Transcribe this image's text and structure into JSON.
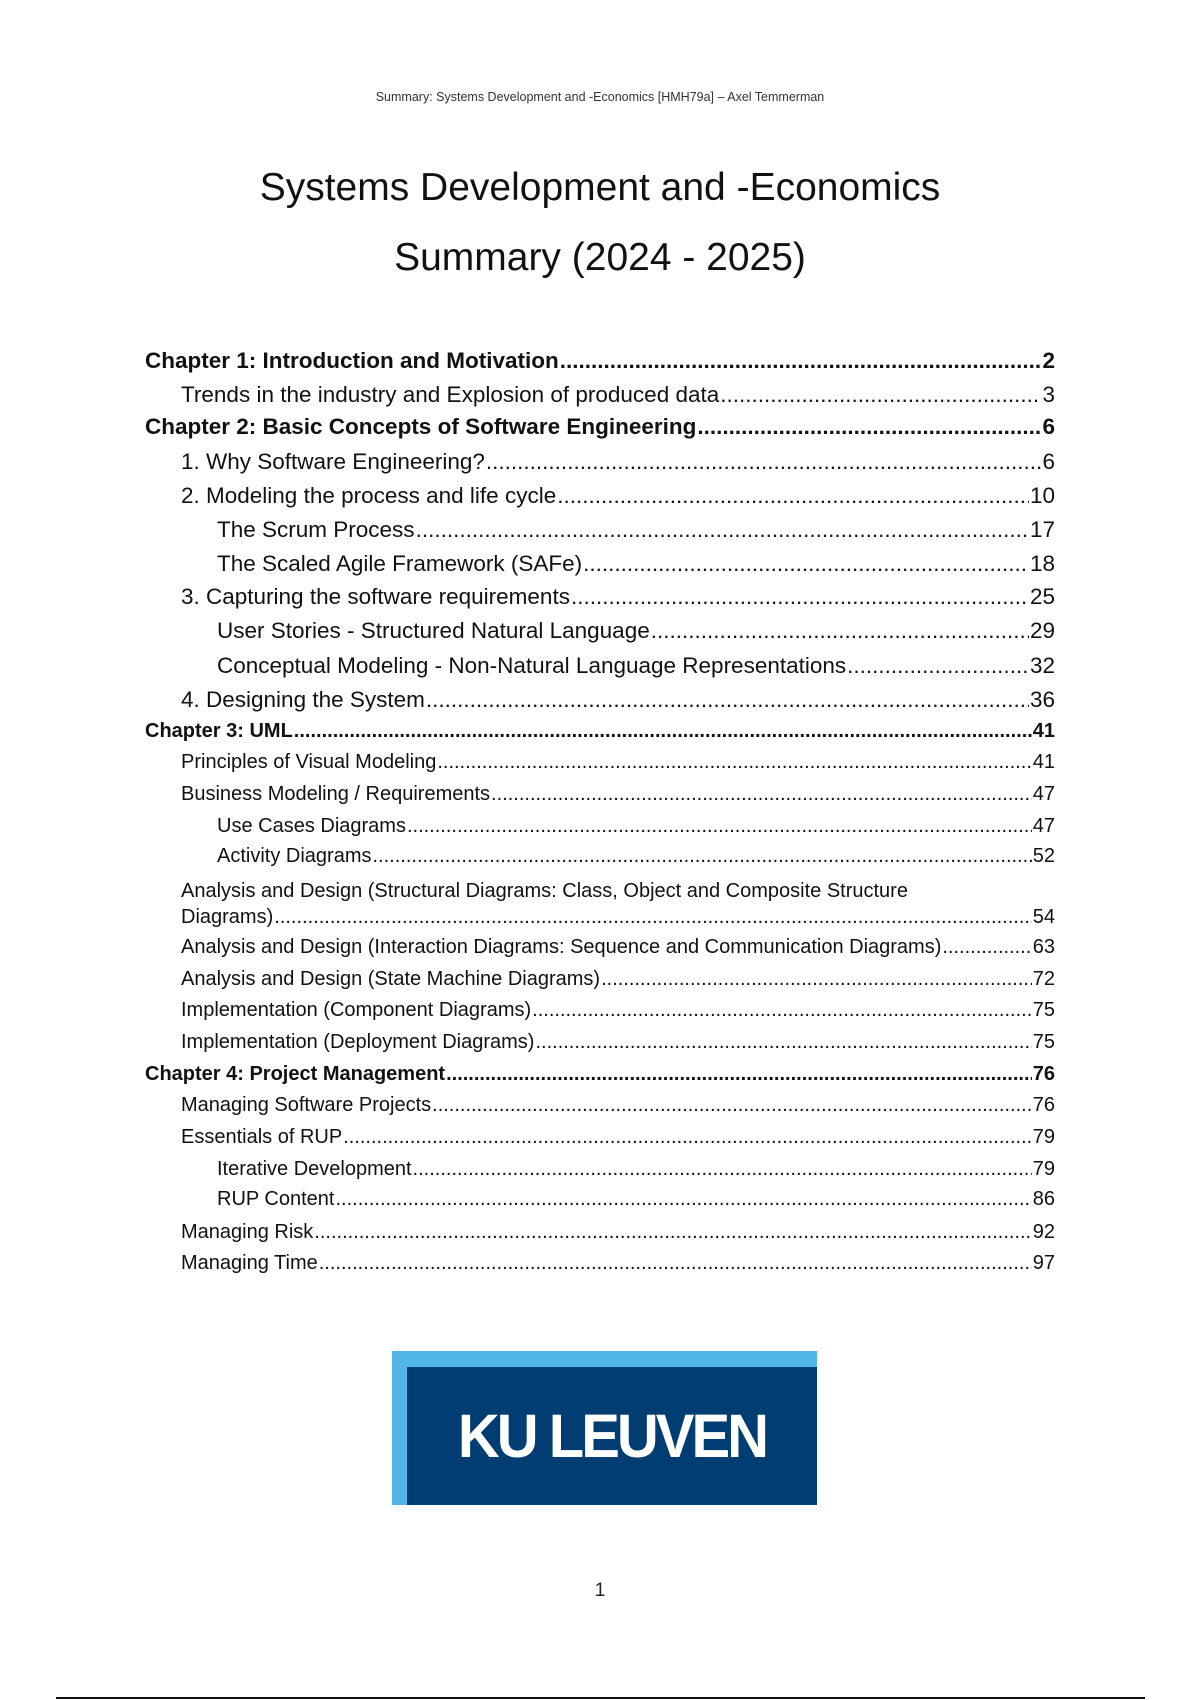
{
  "header": "Summary: Systems Development and -Economics [HMH79a] – Axel Temmerman",
  "title_line1": "Systems Development and -Economics",
  "title_line2": "Summary (2024 - 2025)",
  "toc": [
    {
      "text": "Chapter 1: Introduction and Motivation",
      "page": "2",
      "level": 0
    },
    {
      "text": "Trends in the industry and Explosion of produced data",
      "page": "3",
      "level": 1
    },
    {
      "text": "Chapter 2: Basic Concepts of Software Engineering",
      "page": "6",
      "level": 0
    },
    {
      "text": "1. Why Software Engineering?",
      "page": "6",
      "level": 1
    },
    {
      "text": "2. Modeling the process and life cycle",
      "page": "10",
      "level": 1
    },
    {
      "text": "The Scrum Process",
      "page": "17",
      "level": 2
    },
    {
      "text": "The Scaled Agile Framework (SAFe)",
      "page": "18",
      "level": 2
    },
    {
      "text": "3. Capturing the software requirements",
      "page": "25",
      "level": 1
    },
    {
      "text": "User Stories - Structured Natural Language",
      "page": "29",
      "level": 2
    },
    {
      "text": "Conceptual Modeling - Non-Natural Language Representations",
      "page": "32",
      "level": 2
    },
    {
      "text": "4. Designing the System",
      "page": "36",
      "level": 1
    },
    {
      "text": "Chapter 3: UML",
      "page": "41",
      "level": 0
    },
    {
      "text": "Principles of Visual Modeling",
      "page": "41",
      "level": 1
    },
    {
      "text": "Business Modeling / Requirements",
      "page": "47",
      "level": 1
    },
    {
      "text": "Use Cases Diagrams",
      "page": "47",
      "level": 2
    },
    {
      "text": "Activity Diagrams",
      "page": "52",
      "level": 2
    },
    {
      "text": "Diagrams)",
      "page": "54",
      "level": 1
    },
    {
      "text": "Analysis and Design (Interaction Diagrams: Sequence and Communication Diagrams)",
      "page": "63",
      "level": 1
    },
    {
      "text": "Analysis and Design (State Machine Diagrams)",
      "page": "72",
      "level": 1
    },
    {
      "text": "Implementation (Component Diagrams)",
      "page": "75",
      "level": 1
    },
    {
      "text": "Implementation (Deployment Diagrams)",
      "page": "75",
      "level": 1
    },
    {
      "text": "Chapter 4: Project Management",
      "page": "76",
      "level": 0
    },
    {
      "text": "Managing Software Projects",
      "page": "76",
      "level": 1
    },
    {
      "text": "Essentials of RUP",
      "page": "79",
      "level": 1
    },
    {
      "text": "Iterative Development",
      "page": "79",
      "level": 2
    },
    {
      "text": "RUP Content",
      "page": "86",
      "level": 2
    },
    {
      "text": "Managing Risk",
      "page": "92",
      "level": 1
    },
    {
      "text": "Managing Time",
      "page": "97",
      "level": 1
    }
  ],
  "toc_wrap_first_line": "Analysis and Design (Structural Diagrams: Class, Object and Composite Structure",
  "logo": {
    "text": "KU LEUVEN",
    "colors": {
      "dark": "#003d73",
      "light": "#52b5e8"
    }
  },
  "page_number": "1"
}
